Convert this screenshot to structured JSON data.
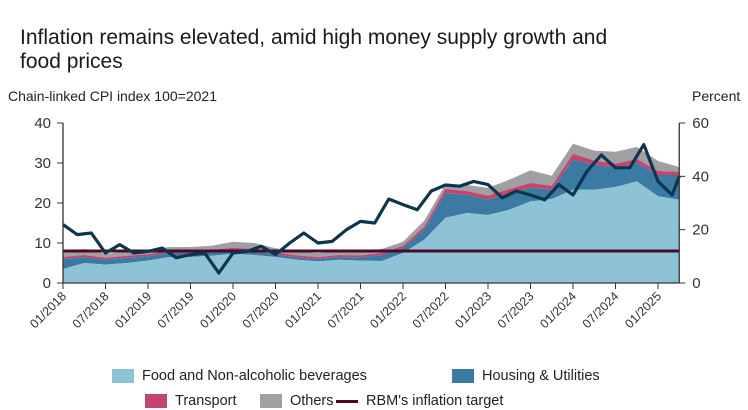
{
  "chart_data": {
    "type": "area",
    "title": "Inflation remains elevated, amid high money supply growth and food prices",
    "ylabel_left": "Chain-linked CPI index 100=2021",
    "ylabel_right": "Percent",
    "ylim_left": [
      0,
      40
    ],
    "ylim_right": [
      0,
      60
    ],
    "yticks_left": [
      "0",
      "10",
      "20",
      "30",
      "40"
    ],
    "yticks_right": [
      "0",
      "20",
      "40",
      "60"
    ],
    "xlim": [
      "2018-01",
      "2025-04"
    ],
    "xtick_labels": [
      "01/2018",
      "07/2018",
      "01/2019",
      "07/2019",
      "01/2020",
      "07/2020",
      "01/2021",
      "07/2021",
      "01/2022",
      "07/2022",
      "01/2023",
      "07/2023",
      "01/2024",
      "07/2024",
      "01/2025"
    ],
    "grid": false,
    "legend_placement": "bottom",
    "area_dates": [
      "2018-01",
      "2018-04",
      "2018-07",
      "2018-10",
      "2019-01",
      "2019-04",
      "2019-07",
      "2019-10",
      "2020-01",
      "2020-04",
      "2020-07",
      "2020-10",
      "2021-01",
      "2021-04",
      "2021-07",
      "2021-10",
      "2022-01",
      "2022-04",
      "2022-07",
      "2022-10",
      "2023-01",
      "2023-04",
      "2023-07",
      "2023-10",
      "2024-01",
      "2024-04",
      "2024-07",
      "2024-10",
      "2025-01",
      "2025-04"
    ],
    "series": [
      {
        "name": "Food and Non-alcoholic beverages",
        "color": "#8ec3d5",
        "stacked": true,
        "values": [
          3.5,
          5,
          4.6,
          5,
          5.6,
          6.5,
          6.5,
          6.8,
          7.3,
          7,
          6.5,
          5.8,
          5.4,
          5.8,
          5.6,
          5.5,
          7.5,
          10.8,
          16.3,
          17.5,
          17,
          18.3,
          20.4,
          21,
          23.3,
          23.3,
          24,
          25.4,
          21.7,
          20.8
        ]
      },
      {
        "name": "Housing & Utilities",
        "color": "#3b7aa3",
        "stacked": true,
        "values": [
          2.5,
          1.5,
          1.2,
          1.3,
          1.1,
          1,
          1,
          1,
          1,
          1,
          0.7,
          0.6,
          0.6,
          0.7,
          0.8,
          1.5,
          1.3,
          2.5,
          6.2,
          4.5,
          3.8,
          4.2,
          3.4,
          2.3,
          7.5,
          6.3,
          4.8,
          4.6,
          5.3,
          6.2
        ]
      },
      {
        "name": "Transport",
        "color": "#c2466e",
        "stacked": true,
        "values": [
          0.5,
          0.5,
          0.5,
          0.5,
          0.5,
          0.5,
          0.5,
          0.5,
          0.5,
          0.5,
          0.5,
          0.5,
          0.5,
          0.5,
          0.5,
          0.5,
          0.5,
          0.8,
          1,
          1,
          1,
          1,
          1.2,
          1,
          1.5,
          1,
          1,
          1,
          1,
          0.8
        ]
      },
      {
        "name": "Others",
        "color": "#a09fa3",
        "stacked": true,
        "values": [
          1,
          1.5,
          1,
          1,
          1,
          1,
          1,
          1,
          1.5,
          1.5,
          1,
          1,
          1,
          1,
          1,
          1,
          1,
          1.5,
          1.2,
          1.5,
          2,
          2.3,
          3.2,
          2.5,
          2.5,
          2.5,
          3,
          3,
          2.5,
          1.2
        ]
      }
    ],
    "target": {
      "name": "RBM's inflation target",
      "color": "#4a0a26",
      "value": 8
    },
    "line": {
      "color": "#0e3550",
      "dates": [
        "2018-01",
        "2018-03",
        "2018-05",
        "2018-07",
        "2018-09",
        "2018-11",
        "2019-01",
        "2019-03",
        "2019-05",
        "2019-07",
        "2019-09",
        "2019-11",
        "2020-01",
        "2020-03",
        "2020-05",
        "2020-07",
        "2020-09",
        "2020-11",
        "2021-01",
        "2021-03",
        "2021-05",
        "2021-07",
        "2021-09",
        "2021-11",
        "2022-01",
        "2022-03",
        "2022-05",
        "2022-07",
        "2022-09",
        "2022-11",
        "2023-01",
        "2023-03",
        "2023-05",
        "2023-07",
        "2023-09",
        "2023-11",
        "2024-01",
        "2024-03",
        "2024-05",
        "2024-07",
        "2024-09",
        "2024-11",
        "2025-01",
        "2025-03",
        "2025-04"
      ],
      "values": [
        14.6,
        12.1,
        12.5,
        7.5,
        9.6,
        7.5,
        7.9,
        8.75,
        6.3,
        7.1,
        7.5,
        2.5,
        7.5,
        7.9,
        9.2,
        7.1,
        10,
        12.5,
        10,
        10.4,
        13.3,
        15.4,
        15,
        21,
        19.6,
        18.3,
        23,
        24.5,
        24.2,
        25.4,
        24.6,
        21.3,
        23,
        22,
        20.8,
        24.6,
        22,
        28,
        32,
        28.8,
        28.8,
        34.6,
        25.4,
        22,
        26.7
      ]
    }
  }
}
